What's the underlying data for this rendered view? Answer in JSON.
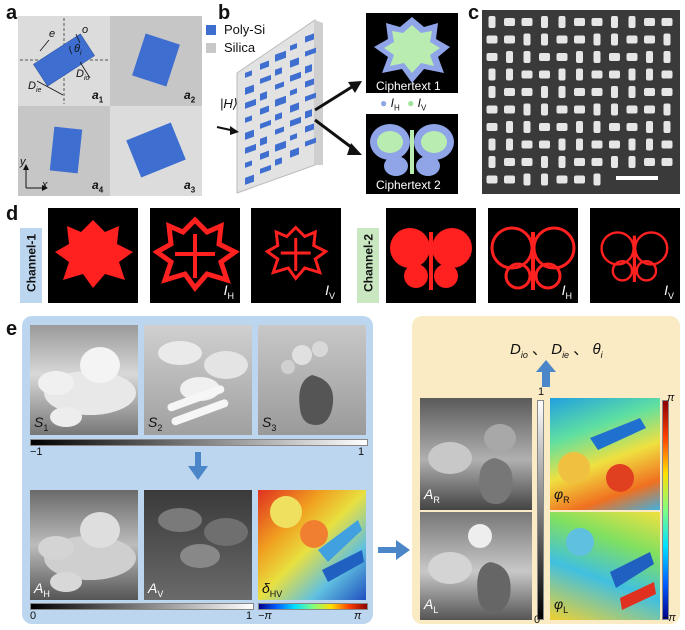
{
  "panels": {
    "a": {
      "label": "a",
      "axis_x": "x",
      "axis_y": "y",
      "dims": {
        "e": "e",
        "o": "o",
        "theta": "θ",
        "theta_sub": "i",
        "D_ie": "D",
        "D_ie_sub": "ie",
        "D_io": "D",
        "D_io_sub": "io"
      },
      "cells": [
        {
          "main": "a",
          "sub": "1"
        },
        {
          "main": "a",
          "sub": "2"
        },
        {
          "main": "a",
          "sub": "4"
        },
        {
          "main": "a",
          "sub": "3"
        }
      ]
    },
    "b": {
      "label": "b",
      "legend": [
        "Poly-Si",
        "Silica"
      ],
      "input": "|H⟩",
      "outputs": [
        "Ciphertext 1",
        "Ciphertext 2"
      ],
      "pol_legend": [
        {
          "sym": "I",
          "sub": "H"
        },
        {
          "sym": "I",
          "sub": "V"
        }
      ]
    },
    "c": {
      "label": "c"
    },
    "d": {
      "label": "d",
      "channels": [
        {
          "name": "Channel-1",
          "captions": [
            "",
            "I",
            "I"
          ],
          "subs": [
            "",
            "H",
            "V"
          ]
        },
        {
          "name": "Channel-2",
          "captions": [
            "",
            "I",
            "I"
          ],
          "subs": [
            "",
            "H",
            "V"
          ]
        }
      ]
    },
    "e": {
      "label": "e",
      "stokes": [
        {
          "sym": "S",
          "sub": "1"
        },
        {
          "sym": "S",
          "sub": "2"
        },
        {
          "sym": "S",
          "sub": "3"
        }
      ],
      "stokes_scale": [
        "−1",
        "1"
      ],
      "amps": [
        {
          "sym": "A",
          "sub": "H"
        },
        {
          "sym": "A",
          "sub": "V"
        },
        {
          "sym": "δ",
          "sub": "HV"
        }
      ],
      "amp_scale": [
        "0",
        "1"
      ],
      "phase_scale": [
        "−π",
        "π"
      ],
      "params": "D",
      "params_list": [
        {
          "sym": "D",
          "sub": "io"
        },
        {
          "sym": "D",
          "sub": "ie"
        },
        {
          "sym": "θ",
          "sub": "i"
        }
      ],
      "params_sep": "、",
      "right_left": [
        {
          "sym": "A",
          "sub": "R"
        },
        {
          "sym": "A",
          "sub": "L"
        }
      ],
      "right_phase": [
        {
          "sym": "φ",
          "sub": "R"
        },
        {
          "sym": "φ",
          "sub": "L"
        }
      ],
      "right_amp_scale": [
        "1",
        "0"
      ],
      "right_phase_scale": [
        "π",
        "−π"
      ]
    }
  },
  "colors": {
    "polysi": "#3e6fd0",
    "silica": "#c8c8c8",
    "panel_e_left": "#bcd6f0",
    "panel_e_right": "#fbebc4",
    "arrow": "#4a86c8",
    "hologram": "#ff2222"
  }
}
